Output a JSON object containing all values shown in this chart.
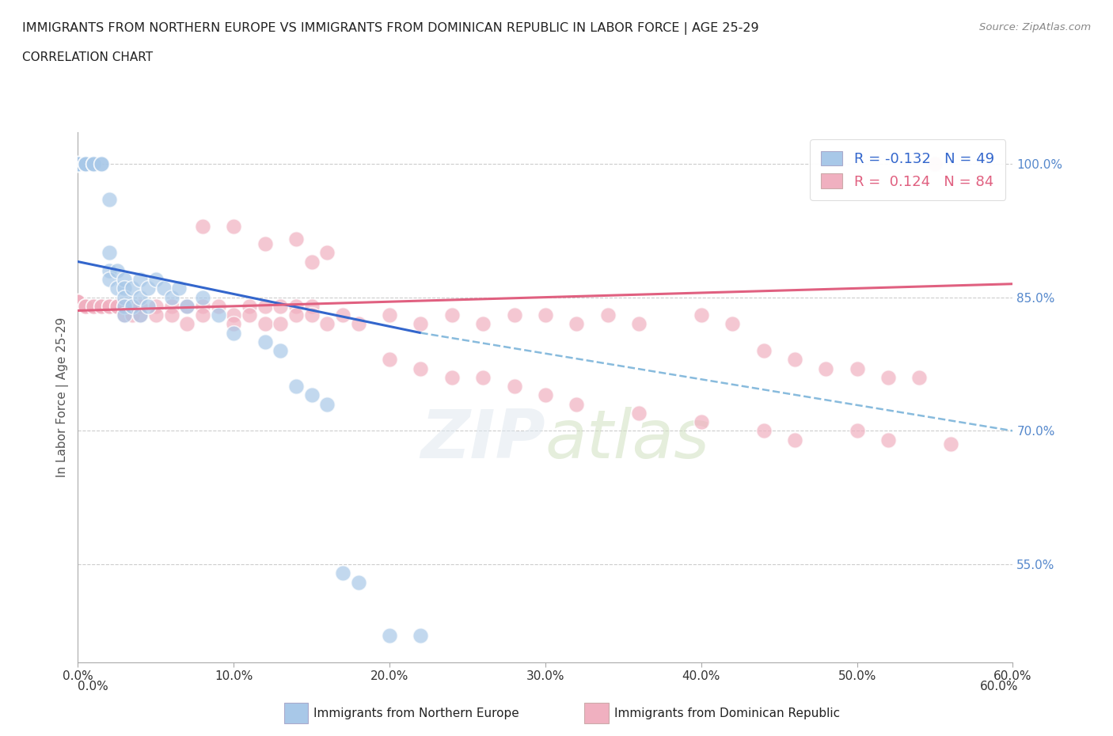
{
  "title_line1": "IMMIGRANTS FROM NORTHERN EUROPE VS IMMIGRANTS FROM DOMINICAN REPUBLIC IN LABOR FORCE | AGE 25-29",
  "title_line2": "CORRELATION CHART",
  "source_text": "Source: ZipAtlas.com",
  "ylabel": "In Labor Force | Age 25-29",
  "xmin": 0.0,
  "xmax": 0.6,
  "ymin": 0.44,
  "ymax": 1.035,
  "blue_color": "#a8c8e8",
  "pink_color": "#f0b0c0",
  "blue_line_color": "#3366cc",
  "pink_line_color": "#e06080",
  "blue_dashed_color": "#88bbdd",
  "r_blue": -0.132,
  "n_blue": 49,
  "r_pink": 0.124,
  "n_pink": 84,
  "legend_label_blue": "Immigrants from Northern Europe",
  "legend_label_pink": "Immigrants from Dominican Republic",
  "watermark_zip": "ZIP",
  "watermark_atlas": "atlas",
  "background_color": "#ffffff",
  "ytick_vals": [
    0.55,
    0.7,
    0.85,
    1.0
  ],
  "ytick_labels": [
    "55.0%",
    "70.0%",
    "85.0%",
    "100.0%"
  ],
  "xtick_vals": [
    0.0,
    0.1,
    0.2,
    0.3,
    0.4,
    0.5,
    0.6
  ],
  "xtick_labels": [
    "0.0%",
    "10.0%",
    "20.0%",
    "30.0%",
    "40.0%",
    "50.0%",
    "60.0%"
  ],
  "blue_scatter": [
    [
      0.0,
      1.0
    ],
    [
      0.0,
      1.0
    ],
    [
      0.0,
      1.0
    ],
    [
      0.0,
      1.0
    ],
    [
      0.0,
      1.0
    ],
    [
      0.005,
      1.0
    ],
    [
      0.005,
      1.0
    ],
    [
      0.005,
      1.0
    ],
    [
      0.005,
      1.0
    ],
    [
      0.01,
      1.0
    ],
    [
      0.01,
      1.0
    ],
    [
      0.01,
      1.0
    ],
    [
      0.015,
      1.0
    ],
    [
      0.015,
      1.0
    ],
    [
      0.02,
      0.96
    ],
    [
      0.02,
      0.9
    ],
    [
      0.02,
      0.88
    ],
    [
      0.02,
      0.87
    ],
    [
      0.025,
      0.88
    ],
    [
      0.025,
      0.86
    ],
    [
      0.03,
      0.87
    ],
    [
      0.03,
      0.86
    ],
    [
      0.03,
      0.85
    ],
    [
      0.03,
      0.84
    ],
    [
      0.03,
      0.83
    ],
    [
      0.035,
      0.86
    ],
    [
      0.035,
      0.84
    ],
    [
      0.04,
      0.87
    ],
    [
      0.04,
      0.85
    ],
    [
      0.04,
      0.83
    ],
    [
      0.045,
      0.86
    ],
    [
      0.045,
      0.84
    ],
    [
      0.05,
      0.87
    ],
    [
      0.055,
      0.86
    ],
    [
      0.06,
      0.85
    ],
    [
      0.065,
      0.86
    ],
    [
      0.07,
      0.84
    ],
    [
      0.08,
      0.85
    ],
    [
      0.09,
      0.83
    ],
    [
      0.1,
      0.81
    ],
    [
      0.12,
      0.8
    ],
    [
      0.13,
      0.79
    ],
    [
      0.14,
      0.75
    ],
    [
      0.15,
      0.74
    ],
    [
      0.16,
      0.73
    ],
    [
      0.17,
      0.54
    ],
    [
      0.18,
      0.53
    ],
    [
      0.2,
      0.47
    ],
    [
      0.22,
      0.47
    ]
  ],
  "pink_scatter": [
    [
      0.0,
      0.845
    ],
    [
      0.0,
      0.845
    ],
    [
      0.0,
      0.845
    ],
    [
      0.0,
      0.845
    ],
    [
      0.0,
      0.845
    ],
    [
      0.005,
      0.84
    ],
    [
      0.005,
      0.84
    ],
    [
      0.005,
      0.84
    ],
    [
      0.01,
      0.84
    ],
    [
      0.01,
      0.84
    ],
    [
      0.015,
      0.84
    ],
    [
      0.015,
      0.84
    ],
    [
      0.02,
      0.84
    ],
    [
      0.02,
      0.84
    ],
    [
      0.025,
      0.84
    ],
    [
      0.025,
      0.84
    ],
    [
      0.03,
      0.84
    ],
    [
      0.03,
      0.83
    ],
    [
      0.035,
      0.84
    ],
    [
      0.035,
      0.83
    ],
    [
      0.04,
      0.84
    ],
    [
      0.04,
      0.83
    ],
    [
      0.05,
      0.84
    ],
    [
      0.05,
      0.83
    ],
    [
      0.06,
      0.84
    ],
    [
      0.06,
      0.83
    ],
    [
      0.07,
      0.84
    ],
    [
      0.07,
      0.82
    ],
    [
      0.08,
      0.84
    ],
    [
      0.08,
      0.83
    ],
    [
      0.09,
      0.84
    ],
    [
      0.1,
      0.83
    ],
    [
      0.1,
      0.82
    ],
    [
      0.11,
      0.84
    ],
    [
      0.11,
      0.83
    ],
    [
      0.12,
      0.84
    ],
    [
      0.12,
      0.82
    ],
    [
      0.13,
      0.84
    ],
    [
      0.13,
      0.82
    ],
    [
      0.14,
      0.84
    ],
    [
      0.14,
      0.83
    ],
    [
      0.15,
      0.84
    ],
    [
      0.15,
      0.83
    ],
    [
      0.16,
      0.82
    ],
    [
      0.17,
      0.83
    ],
    [
      0.18,
      0.82
    ],
    [
      0.2,
      0.83
    ],
    [
      0.22,
      0.82
    ],
    [
      0.24,
      0.83
    ],
    [
      0.26,
      0.82
    ],
    [
      0.28,
      0.83
    ],
    [
      0.3,
      0.83
    ],
    [
      0.32,
      0.82
    ],
    [
      0.34,
      0.83
    ],
    [
      0.36,
      0.82
    ],
    [
      0.4,
      0.83
    ],
    [
      0.42,
      0.82
    ],
    [
      0.44,
      0.79
    ],
    [
      0.46,
      0.78
    ],
    [
      0.48,
      0.77
    ],
    [
      0.5,
      0.77
    ],
    [
      0.52,
      0.76
    ],
    [
      0.54,
      0.76
    ],
    [
      0.2,
      0.78
    ],
    [
      0.22,
      0.77
    ],
    [
      0.24,
      0.76
    ],
    [
      0.26,
      0.76
    ],
    [
      0.28,
      0.75
    ],
    [
      0.3,
      0.74
    ],
    [
      0.32,
      0.73
    ],
    [
      0.36,
      0.72
    ],
    [
      0.4,
      0.71
    ],
    [
      0.44,
      0.7
    ],
    [
      0.46,
      0.69
    ],
    [
      0.5,
      0.7
    ],
    [
      0.52,
      0.69
    ],
    [
      0.56,
      0.685
    ],
    [
      0.55,
      1.0
    ],
    [
      0.08,
      0.93
    ],
    [
      0.1,
      0.93
    ],
    [
      0.12,
      0.91
    ],
    [
      0.14,
      0.915
    ],
    [
      0.16,
      0.9
    ],
    [
      0.15,
      0.89
    ]
  ]
}
